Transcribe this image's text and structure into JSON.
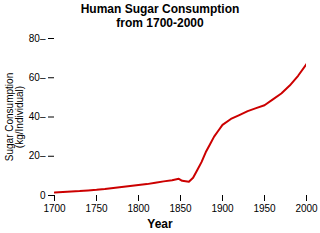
{
  "chart_data": {
    "type": "line",
    "title": "Human Sugar Consumption\nfrom 1700-2000",
    "xlabel": "Year",
    "ylabel": "Sugar Consumption\n(kg/Individual)",
    "color": "#cc0000",
    "x": [
      1700,
      1710,
      1720,
      1730,
      1740,
      1750,
      1760,
      1770,
      1780,
      1790,
      1800,
      1810,
      1820,
      1830,
      1840,
      1848,
      1852,
      1860,
      1865,
      1870,
      1875,
      1880,
      1885,
      1890,
      1895,
      1900,
      1910,
      1920,
      1930,
      1940,
      1950,
      1960,
      1970,
      1980,
      1990,
      2000
    ],
    "values": [
      1.5,
      1.8,
      2.1,
      2.3,
      2.6,
      2.9,
      3.3,
      3.8,
      4.3,
      4.8,
      5.3,
      5.8,
      6.5,
      7.2,
      7.8,
      8.5,
      7.5,
      7.0,
      9.0,
      13.0,
      17.0,
      22.0,
      26.0,
      30.0,
      33.0,
      36.0,
      39.0,
      41.0,
      43.0,
      44.5,
      46.0,
      49.0,
      52.0,
      56.0,
      61.0,
      67.0
    ],
    "xlim": [
      1700,
      2000
    ],
    "ylim": [
      0,
      80
    ],
    "xticks": [
      1700,
      1750,
      1800,
      1850,
      1900,
      1950,
      2000
    ],
    "yticks": [
      0,
      {
        "value": 20,
        "label": "20–"
      },
      {
        "value": 40,
        "label": "40–"
      },
      {
        "value": 60,
        "label": "60–"
      },
      {
        "value": 80,
        "label": "80–"
      }
    ],
    "grid": false
  }
}
